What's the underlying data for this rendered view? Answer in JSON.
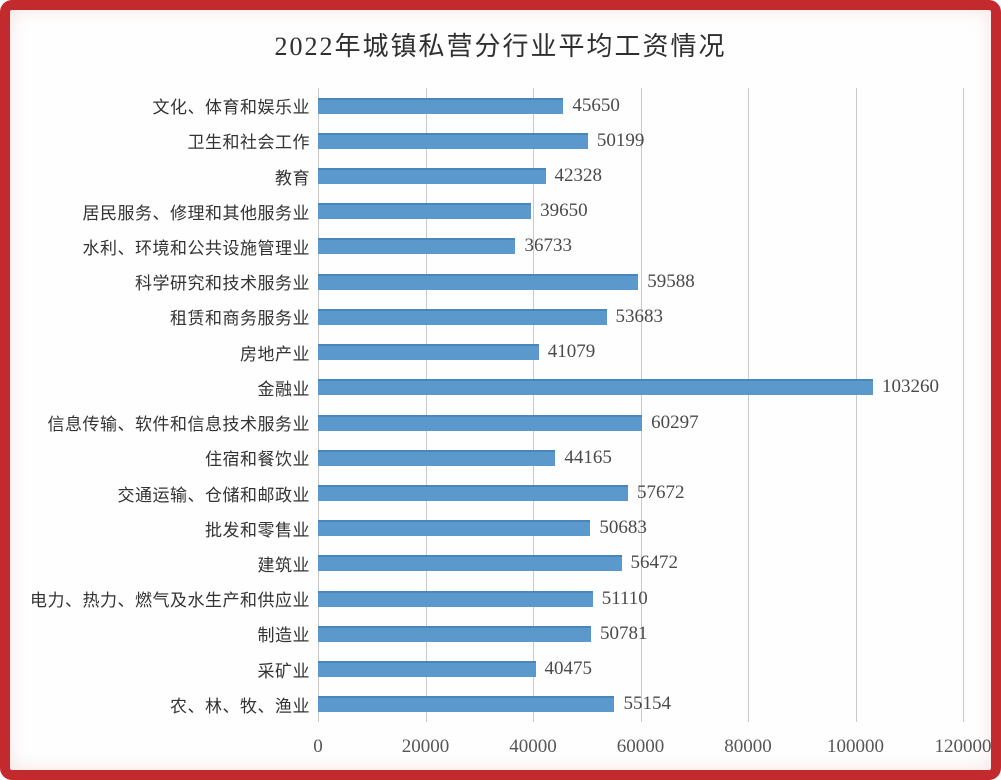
{
  "frame": {
    "border_color": "#c32a2e",
    "background": "#fefefe"
  },
  "chart_data": {
    "type": "bar",
    "orientation": "horizontal",
    "title": "2022年城镇私营分行业平均工资情况",
    "categories": [
      "文化、体育和娱乐业",
      "卫生和社会工作",
      "教育",
      "居民服务、修理和其他服务业",
      "水利、环境和公共设施管理业",
      "科学研究和技术服务业",
      "租赁和商务服务业",
      "房地产业",
      "金融业",
      "信息传输、软件和信息技术服务业",
      "住宿和餐饮业",
      "交通运输、仓储和邮政业",
      "批发和零售业",
      "建筑业",
      "电力、热力、燃气及水生产和供应业",
      "制造业",
      "采矿业",
      "农、林、牧、渔业"
    ],
    "values": [
      45650,
      50199,
      42328,
      39650,
      36733,
      59588,
      53683,
      41079,
      103260,
      60297,
      44165,
      57672,
      50683,
      56472,
      51110,
      50781,
      40475,
      55154
    ],
    "value_labels": [
      "45650",
      "50199",
      "42328",
      "39650",
      "36733",
      "59588",
      "53683",
      "41079",
      "103260",
      "60297",
      "44165",
      "57672",
      "50683",
      "56472",
      "51110",
      "50781",
      "40475",
      "55154"
    ],
    "xlabel": "",
    "ylabel": "",
    "xlim": [
      0,
      120000
    ],
    "xticks": [
      0,
      20000,
      40000,
      60000,
      80000,
      100000,
      120000
    ],
    "xtick_labels": [
      "0",
      "20000",
      "40000",
      "60000",
      "80000",
      "100000",
      "120000"
    ],
    "grid": "vertical",
    "legend": "none",
    "bar_color": "#5b99cd",
    "gridline_color": "#c9c9c9"
  }
}
